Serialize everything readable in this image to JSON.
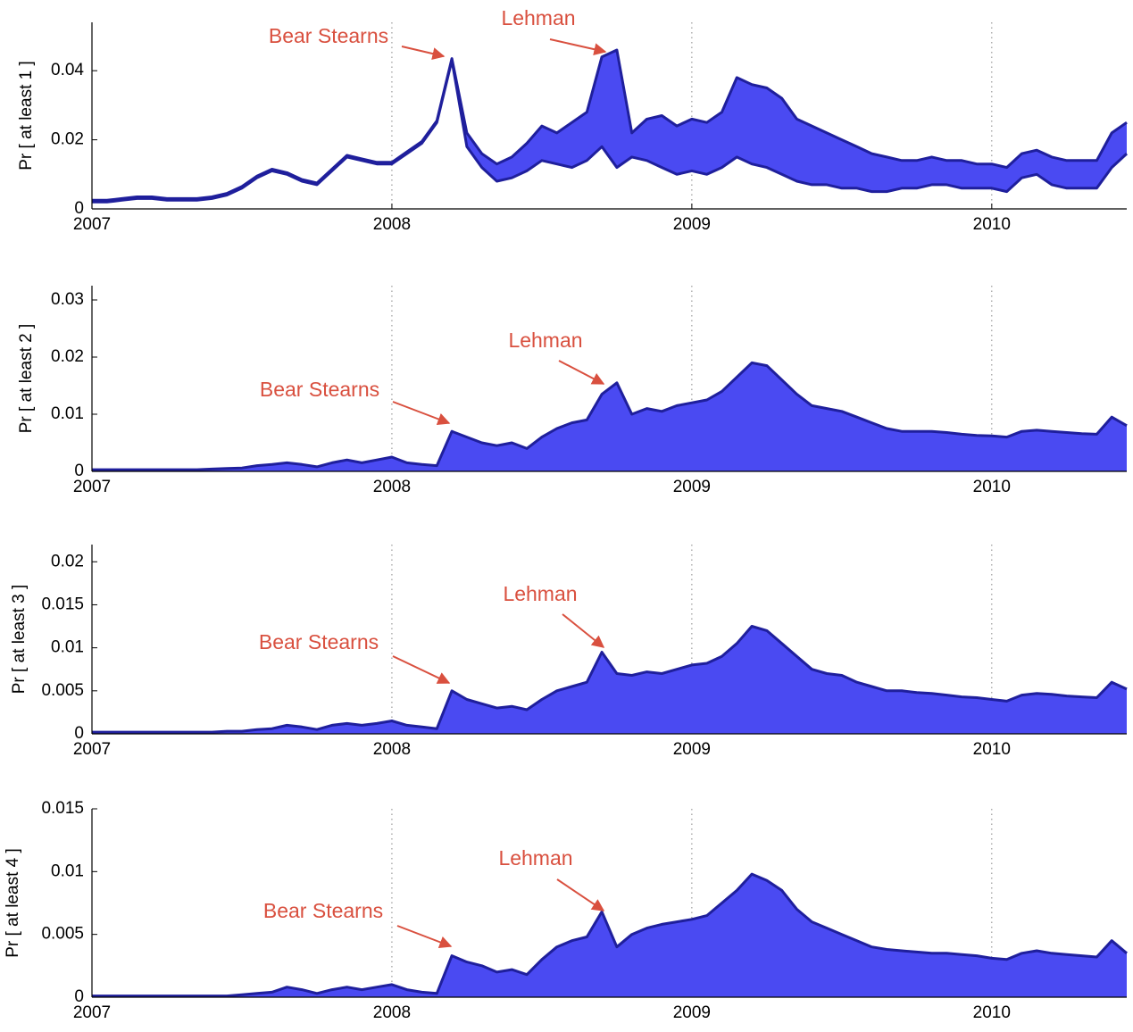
{
  "chart_data": [
    {
      "type": "band",
      "ylabel": "Pr [ at least 1 ]",
      "color": "#4a4af2",
      "line_color": "#1f1f9c",
      "grid": "x",
      "xlim": [
        2007,
        2010.45
      ],
      "xticks": [
        2007,
        2008,
        2009,
        2010
      ],
      "ylim": [
        0,
        0.054
      ],
      "yticks": [
        0,
        0.02,
        0.04
      ],
      "annotations": [
        "Bear Stearns",
        "Lehman"
      ],
      "x": [
        2007,
        2007.05,
        2007.1,
        2007.15,
        2007.2,
        2007.25,
        2007.3,
        2007.35,
        2007.4,
        2007.45,
        2007.5,
        2007.55,
        2007.6,
        2007.65,
        2007.7,
        2007.75,
        2007.8,
        2007.85,
        2007.9,
        2007.95,
        2008,
        2008.05,
        2008.1,
        2008.15,
        2008.2,
        2008.25,
        2008.3,
        2008.35,
        2008.4,
        2008.45,
        2008.5,
        2008.55,
        2008.6,
        2008.65,
        2008.7,
        2008.75,
        2008.8,
        2008.85,
        2008.9,
        2008.95,
        2009,
        2009.05,
        2009.1,
        2009.15,
        2009.2,
        2009.25,
        2009.3,
        2009.35,
        2009.4,
        2009.45,
        2009.5,
        2009.55,
        2009.6,
        2009.65,
        2009.7,
        2009.75,
        2009.8,
        2009.85,
        2009.9,
        2009.95,
        2010,
        2010.05,
        2010.1,
        2010.15,
        2010.2,
        2010.25,
        2010.3,
        2010.35,
        2010.4,
        2010.45
      ],
      "lower": [
        0.002,
        0.002,
        0.0025,
        0.003,
        0.003,
        0.0025,
        0.0025,
        0.0025,
        0.003,
        0.004,
        0.006,
        0.009,
        0.011,
        0.01,
        0.008,
        0.007,
        0.011,
        0.015,
        0.014,
        0.013,
        0.013,
        0.016,
        0.019,
        0.025,
        0.043,
        0.018,
        0.012,
        0.008,
        0.009,
        0.011,
        0.014,
        0.013,
        0.012,
        0.014,
        0.018,
        0.012,
        0.015,
        0.014,
        0.012,
        0.01,
        0.011,
        0.01,
        0.012,
        0.015,
        0.013,
        0.012,
        0.01,
        0.008,
        0.007,
        0.007,
        0.006,
        0.006,
        0.005,
        0.005,
        0.006,
        0.006,
        0.007,
        0.007,
        0.006,
        0.006,
        0.006,
        0.005,
        0.009,
        0.01,
        0.007,
        0.006,
        0.006,
        0.006,
        0.012,
        0.016
      ],
      "upper": [
        0.0025,
        0.0025,
        0.003,
        0.0035,
        0.0035,
        0.003,
        0.003,
        0.003,
        0.0035,
        0.0045,
        0.0065,
        0.0095,
        0.0115,
        0.0105,
        0.0085,
        0.0075,
        0.0115,
        0.0155,
        0.0145,
        0.0135,
        0.0135,
        0.0165,
        0.0195,
        0.0255,
        0.0435,
        0.022,
        0.016,
        0.013,
        0.015,
        0.019,
        0.024,
        0.022,
        0.025,
        0.028,
        0.044,
        0.046,
        0.022,
        0.026,
        0.027,
        0.024,
        0.026,
        0.025,
        0.028,
        0.038,
        0.036,
        0.035,
        0.032,
        0.026,
        0.024,
        0.022,
        0.02,
        0.018,
        0.016,
        0.015,
        0.014,
        0.014,
        0.015,
        0.014,
        0.014,
        0.013,
        0.013,
        0.012,
        0.016,
        0.017,
        0.015,
        0.014,
        0.014,
        0.014,
        0.022,
        0.025
      ]
    },
    {
      "type": "area",
      "ylabel": "Pr [ at least 2 ]",
      "color": "#4a4af2",
      "line_color": "#1f1f9c",
      "grid": "x",
      "xlim": [
        2007,
        2010.45
      ],
      "xticks": [
        2007,
        2008,
        2009,
        2010
      ],
      "ylim": [
        0,
        0.0325
      ],
      "yticks": [
        0,
        0.01,
        0.02,
        0.03
      ],
      "annotations": [
        "Bear Stearns",
        "Lehman"
      ],
      "x": [
        2007,
        2007.05,
        2007.1,
        2007.15,
        2007.2,
        2007.25,
        2007.3,
        2007.35,
        2007.4,
        2007.45,
        2007.5,
        2007.55,
        2007.6,
        2007.65,
        2007.7,
        2007.75,
        2007.8,
        2007.85,
        2007.9,
        2007.95,
        2008,
        2008.05,
        2008.1,
        2008.15,
        2008.2,
        2008.25,
        2008.3,
        2008.35,
        2008.4,
        2008.45,
        2008.5,
        2008.55,
        2008.6,
        2008.65,
        2008.7,
        2008.75,
        2008.8,
        2008.85,
        2008.9,
        2008.95,
        2009,
        2009.05,
        2009.1,
        2009.15,
        2009.2,
        2009.25,
        2009.3,
        2009.35,
        2009.4,
        2009.45,
        2009.5,
        2009.55,
        2009.6,
        2009.65,
        2009.7,
        2009.75,
        2009.8,
        2009.85,
        2009.9,
        2009.95,
        2010,
        2010.05,
        2010.1,
        2010.15,
        2010.2,
        2010.25,
        2010.3,
        2010.35,
        2010.4,
        2010.45
      ],
      "values": [
        0.0003,
        0.0003,
        0.0003,
        0.0003,
        0.0003,
        0.0003,
        0.0003,
        0.0003,
        0.0004,
        0.0005,
        0.0006,
        0.001,
        0.0012,
        0.0015,
        0.0012,
        0.0008,
        0.0015,
        0.002,
        0.0015,
        0.002,
        0.0025,
        0.0015,
        0.0012,
        0.001,
        0.007,
        0.006,
        0.005,
        0.0045,
        0.005,
        0.004,
        0.006,
        0.0075,
        0.0085,
        0.009,
        0.0135,
        0.0155,
        0.01,
        0.011,
        0.0105,
        0.0115,
        0.012,
        0.0125,
        0.014,
        0.0165,
        0.019,
        0.0185,
        0.016,
        0.0135,
        0.0115,
        0.011,
        0.0105,
        0.0095,
        0.0085,
        0.0075,
        0.007,
        0.007,
        0.007,
        0.0068,
        0.0065,
        0.0063,
        0.0062,
        0.006,
        0.007,
        0.0072,
        0.007,
        0.0068,
        0.0066,
        0.0065,
        0.0095,
        0.008
      ]
    },
    {
      "type": "area",
      "ylabel": "Pr [ at least 3 ]",
      "color": "#4a4af2",
      "line_color": "#1f1f9c",
      "grid": "x",
      "xlim": [
        2007,
        2010.45
      ],
      "xticks": [
        2007,
        2008,
        2009,
        2010
      ],
      "ylim": [
        0,
        0.022
      ],
      "yticks": [
        0,
        0.005,
        0.01,
        0.015,
        0.02
      ],
      "annotations": [
        "Bear Stearns",
        "Lehman"
      ],
      "x": [
        2007,
        2007.05,
        2007.1,
        2007.15,
        2007.2,
        2007.25,
        2007.3,
        2007.35,
        2007.4,
        2007.45,
        2007.5,
        2007.55,
        2007.6,
        2007.65,
        2007.7,
        2007.75,
        2007.8,
        2007.85,
        2007.9,
        2007.95,
        2008,
        2008.05,
        2008.1,
        2008.15,
        2008.2,
        2008.25,
        2008.3,
        2008.35,
        2008.4,
        2008.45,
        2008.5,
        2008.55,
        2008.6,
        2008.65,
        2008.7,
        2008.75,
        2008.8,
        2008.85,
        2008.9,
        2008.95,
        2009,
        2009.05,
        2009.1,
        2009.15,
        2009.2,
        2009.25,
        2009.3,
        2009.35,
        2009.4,
        2009.45,
        2009.5,
        2009.55,
        2009.6,
        2009.65,
        2009.7,
        2009.75,
        2009.8,
        2009.85,
        2009.9,
        2009.95,
        2010,
        2010.05,
        2010.1,
        2010.15,
        2010.2,
        2010.25,
        2010.3,
        2010.35,
        2010.4,
        2010.45
      ],
      "values": [
        0.0002,
        0.0002,
        0.0002,
        0.0002,
        0.0002,
        0.0002,
        0.0002,
        0.0002,
        0.0002,
        0.0003,
        0.0003,
        0.0005,
        0.0006,
        0.001,
        0.0008,
        0.0005,
        0.001,
        0.0012,
        0.001,
        0.0012,
        0.0015,
        0.001,
        0.0008,
        0.0006,
        0.005,
        0.004,
        0.0035,
        0.003,
        0.0032,
        0.0028,
        0.004,
        0.005,
        0.0055,
        0.006,
        0.0095,
        0.007,
        0.0068,
        0.0072,
        0.007,
        0.0075,
        0.008,
        0.0082,
        0.009,
        0.0105,
        0.0125,
        0.012,
        0.0105,
        0.009,
        0.0075,
        0.007,
        0.0068,
        0.006,
        0.0055,
        0.005,
        0.005,
        0.0048,
        0.0047,
        0.0045,
        0.0043,
        0.0042,
        0.004,
        0.0038,
        0.0045,
        0.0047,
        0.0046,
        0.0044,
        0.0043,
        0.0042,
        0.006,
        0.0052
      ]
    },
    {
      "type": "area",
      "ylabel": "Pr [ at least 4 ]",
      "color": "#4a4af2",
      "line_color": "#1f1f9c",
      "grid": "x",
      "xlim": [
        2007,
        2010.45
      ],
      "xticks": [
        2007,
        2008,
        2009,
        2010
      ],
      "ylim": [
        0,
        0.015
      ],
      "yticks": [
        0,
        0.005,
        0.01,
        0.015
      ],
      "annotations": [
        "Bear Stearns",
        "Lehman"
      ],
      "x": [
        2007,
        2007.05,
        2007.1,
        2007.15,
        2007.2,
        2007.25,
        2007.3,
        2007.35,
        2007.4,
        2007.45,
        2007.5,
        2007.55,
        2007.6,
        2007.65,
        2007.7,
        2007.75,
        2007.8,
        2007.85,
        2007.9,
        2007.95,
        2008,
        2008.05,
        2008.1,
        2008.15,
        2008.2,
        2008.25,
        2008.3,
        2008.35,
        2008.4,
        2008.45,
        2008.5,
        2008.55,
        2008.6,
        2008.65,
        2008.7,
        2008.75,
        2008.8,
        2008.85,
        2008.9,
        2008.95,
        2009,
        2009.05,
        2009.1,
        2009.15,
        2009.2,
        2009.25,
        2009.3,
        2009.35,
        2009.4,
        2009.45,
        2009.5,
        2009.55,
        2009.6,
        2009.65,
        2009.7,
        2009.75,
        2009.8,
        2009.85,
        2009.9,
        2009.95,
        2010,
        2010.05,
        2010.1,
        2010.15,
        2010.2,
        2010.25,
        2010.3,
        2010.35,
        2010.4,
        2010.45
      ],
      "values": [
        0.0001,
        0.0001,
        0.0001,
        0.0001,
        0.0001,
        0.0001,
        0.0001,
        0.0001,
        0.0001,
        0.0001,
        0.0002,
        0.0003,
        0.0004,
        0.0008,
        0.0006,
        0.0003,
        0.0006,
        0.0008,
        0.0006,
        0.0008,
        0.001,
        0.0006,
        0.0004,
        0.0003,
        0.0033,
        0.0028,
        0.0025,
        0.002,
        0.0022,
        0.0018,
        0.003,
        0.004,
        0.0045,
        0.0048,
        0.0068,
        0.004,
        0.005,
        0.0055,
        0.0058,
        0.006,
        0.0062,
        0.0065,
        0.0075,
        0.0085,
        0.0098,
        0.0093,
        0.0085,
        0.007,
        0.006,
        0.0055,
        0.005,
        0.0045,
        0.004,
        0.0038,
        0.0037,
        0.0036,
        0.0035,
        0.0035,
        0.0034,
        0.0033,
        0.0031,
        0.003,
        0.0035,
        0.0037,
        0.0035,
        0.0034,
        0.0033,
        0.0032,
        0.0045,
        0.0035
      ]
    }
  ]
}
